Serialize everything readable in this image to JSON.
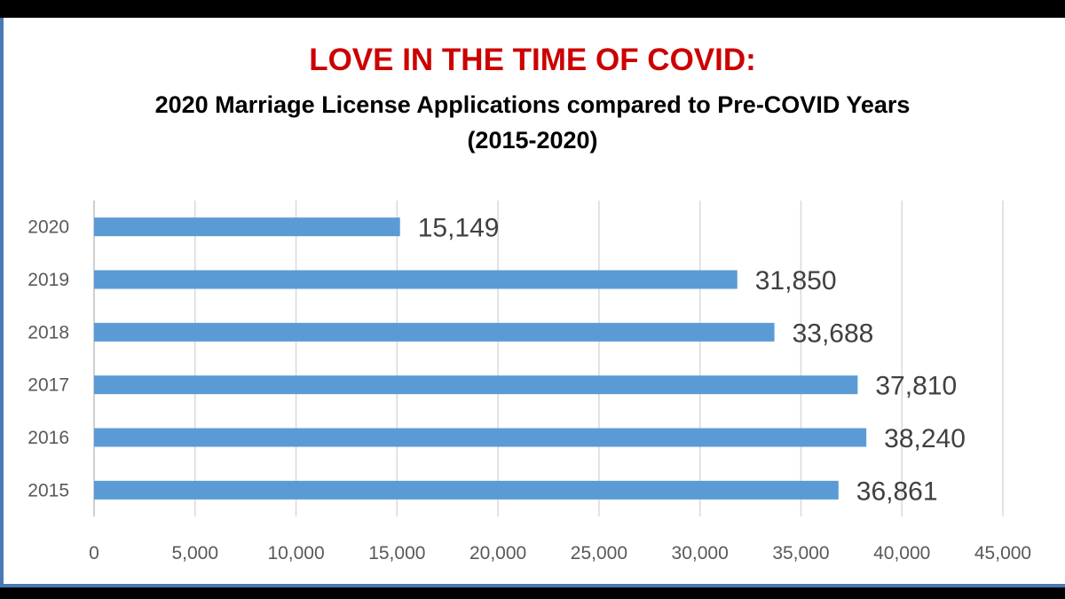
{
  "chart_data": {
    "type": "bar",
    "orientation": "horizontal",
    "title": "LOVE IN THE TIME OF COVID:",
    "subtitle": "2020 Marriage License Applications compared to Pre-COVID Years (2015-2020)",
    "categories": [
      "2020",
      "2019",
      "2018",
      "2017",
      "2016",
      "2015"
    ],
    "values": [
      15149,
      31850,
      33688,
      37810,
      38240,
      36861
    ],
    "data_labels": [
      "15,149",
      "31,850",
      "33,688",
      "37,810",
      "38,240",
      "36,861"
    ],
    "xlim": [
      0,
      45000
    ],
    "x_ticks": [
      0,
      5000,
      10000,
      15000,
      20000,
      25000,
      30000,
      35000,
      40000,
      45000
    ],
    "x_tick_labels": [
      "0",
      "5,000",
      "10,000",
      "15,000",
      "20,000",
      "25,000",
      "30,000",
      "35,000",
      "40,000",
      "45,000"
    ],
    "xlabel": "",
    "ylabel": "",
    "grid": "vertical",
    "legend": "none",
    "colors": {
      "bar": "#5b9bd5",
      "title": "#cc0000",
      "grid": "#d9d9d9",
      "border": "#4a79b4"
    }
  }
}
